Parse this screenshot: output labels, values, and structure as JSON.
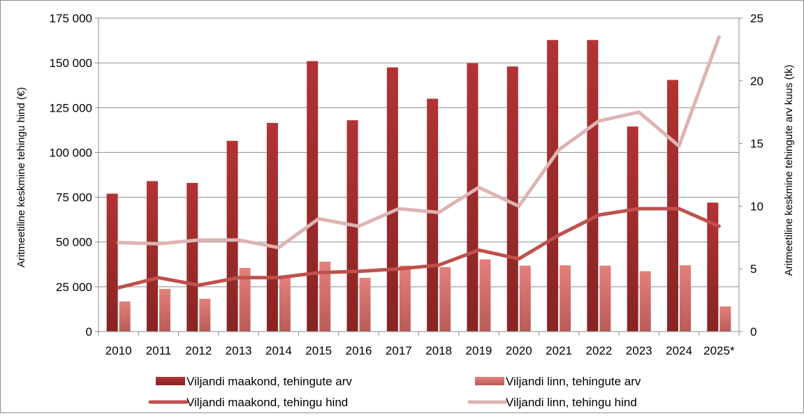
{
  "chart_data": {
    "type": "bar",
    "categories": [
      "2010",
      "2011",
      "2012",
      "2013",
      "2014",
      "2015",
      "2016",
      "2017",
      "2018",
      "2019",
      "2020",
      "2021",
      "2022",
      "2023",
      "2024",
      "2025*"
    ],
    "ylabel": "Aritmeetiline keskmine tehingu hind (€)",
    "y2label": "Aritmeetiline keskmine tehingute arv kuus (tk)",
    "ylim": [
      0,
      175000
    ],
    "y2lim": [
      0,
      25
    ],
    "yticks": [
      0,
      25000,
      50000,
      75000,
      100000,
      125000,
      150000,
      175000
    ],
    "yticklabels": [
      "0",
      "25 000",
      "50 000",
      "75 000",
      "100 000",
      "125 000",
      "150 000",
      "175 000"
    ],
    "y2ticks": [
      0,
      5,
      10,
      15,
      20,
      25
    ],
    "y2ticklabels": [
      "0",
      "5",
      "10",
      "15",
      "20",
      "25"
    ],
    "grid": true,
    "legend_position": "bottom",
    "series": [
      {
        "name": "Viljandi maakond, tehingute arv",
        "type": "bar",
        "axis": "left",
        "color": "#9b2c2c",
        "values": [
          77000,
          84000,
          83000,
          106500,
          116500,
          151000,
          118000,
          147500,
          130000,
          149800,
          148000,
          162800,
          162800,
          114500,
          140500,
          72000
        ]
      },
      {
        "name": "Viljandi linn, tehingute arv",
        "type": "bar",
        "axis": "left",
        "color": "#d97570",
        "values": [
          16800,
          23800,
          18300,
          35500,
          30000,
          39000,
          30000,
          36800,
          36000,
          40300,
          36800,
          37000,
          36800,
          33700,
          37000,
          14000
        ]
      },
      {
        "name": "Viljandi maakond, tehingu hind",
        "type": "line",
        "axis": "right",
        "color": "#c0504d",
        "values": [
          3.5,
          4.3,
          3.7,
          4.3,
          4.3,
          4.7,
          4.8,
          5.0,
          5.3,
          6.5,
          5.8,
          7.7,
          9.3,
          9.8,
          9.8,
          8.4
        ]
      },
      {
        "name": "Viljandi linn, tehingu hind",
        "type": "line",
        "axis": "right",
        "color": "#ddb4b2",
        "values": [
          7.1,
          7.0,
          7.3,
          7.3,
          6.7,
          9.0,
          8.4,
          9.8,
          9.5,
          11.5,
          10.0,
          14.5,
          16.8,
          17.5,
          14.8,
          23.5
        ]
      }
    ]
  }
}
